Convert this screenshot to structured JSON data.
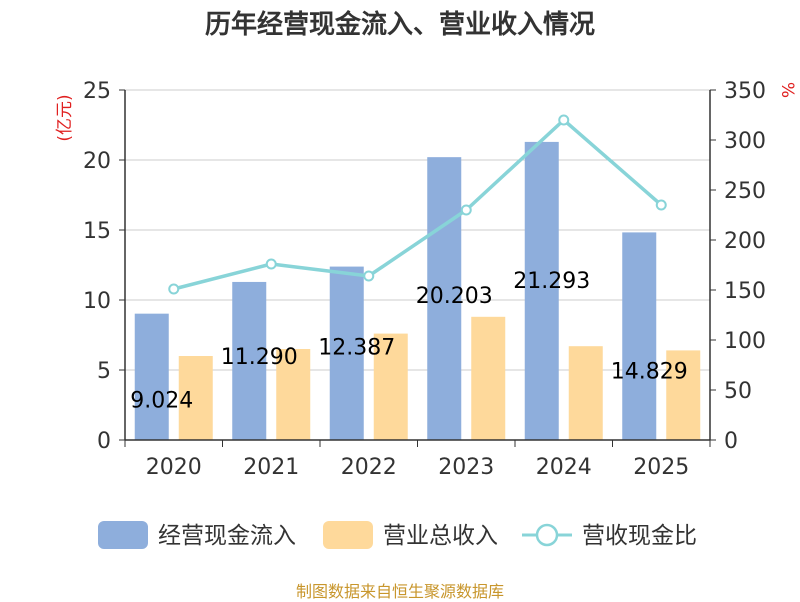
{
  "chart_data": {
    "type": "bar",
    "title": "历年经营现金流入、营业收入情况",
    "categories": [
      "2020",
      "2021",
      "2022",
      "2023",
      "2024",
      "2025"
    ],
    "series": [
      {
        "name": "经营现金流入",
        "type": "bar",
        "axis": "left",
        "color": "#8eaedc",
        "values": [
          9.024,
          11.29,
          12.387,
          20.203,
          21.293,
          14.829
        ],
        "labels": [
          "9.024",
          "11.290",
          "12.387",
          "20.203",
          "21.293",
          "14.829"
        ]
      },
      {
        "name": "营业总收入",
        "type": "bar",
        "axis": "left",
        "color": "#fed99b",
        "values": [
          6.0,
          6.5,
          7.6,
          8.8,
          6.7,
          6.4
        ]
      },
      {
        "name": "营收现金比",
        "type": "line",
        "axis": "right",
        "color": "#88d4d8",
        "values": [
          151,
          176,
          164,
          230,
          320,
          235
        ]
      }
    ],
    "y_left": {
      "label": "(亿元)",
      "ylim": [
        0,
        25
      ],
      "ticks": [
        "0",
        "5",
        "10",
        "15",
        "20",
        "25"
      ]
    },
    "y_right": {
      "label": "%",
      "ylim": [
        0,
        350
      ],
      "ticks": [
        "0",
        "50",
        "100",
        "150",
        "200",
        "250",
        "300",
        "350"
      ]
    },
    "grid": true,
    "legend_position": "bottom"
  },
  "footer": {
    "source": "制图数据来自恒生聚源数据库"
  }
}
